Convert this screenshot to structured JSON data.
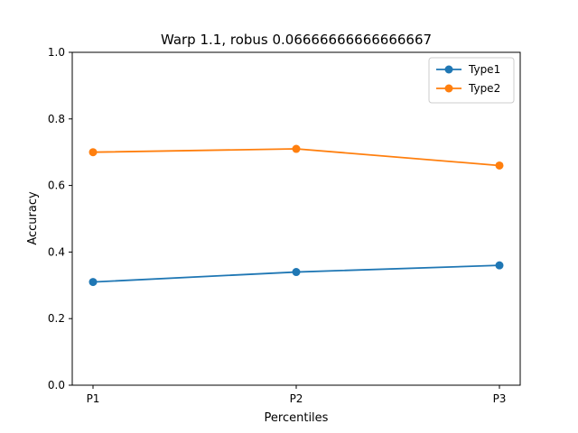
{
  "chart_data": {
    "type": "line",
    "title": "Warp 1.1, robus 0.06666666666666667",
    "xlabel": "Percentiles",
    "ylabel": "Accuracy",
    "categories": [
      "P1",
      "P2",
      "P3"
    ],
    "ylim": [
      0,
      1.0
    ],
    "yticks": [
      "0.0",
      "0.2",
      "0.4",
      "0.6",
      "0.8",
      "1.0"
    ],
    "legend_position": "top-right",
    "grid": false,
    "series": [
      {
        "name": "Type1",
        "color": "#1f77b4",
        "values": [
          0.31,
          0.34,
          0.36
        ]
      },
      {
        "name": "Type2",
        "color": "#ff7f0e",
        "values": [
          0.7,
          0.71,
          0.66
        ]
      }
    ]
  }
}
